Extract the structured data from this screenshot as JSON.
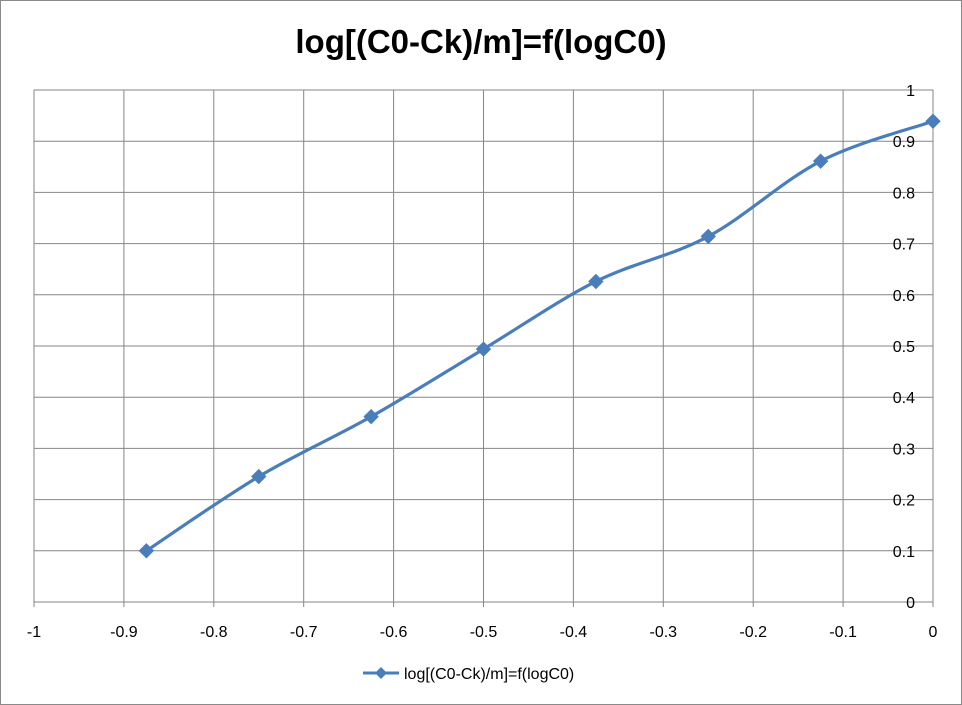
{
  "chart_data": {
    "type": "scatter",
    "title": "log[(C0-Ck)/m]=f(logC0)",
    "xlabel": "",
    "ylabel": "",
    "xlim": [
      -1,
      0
    ],
    "ylim": [
      0,
      1
    ],
    "xticks": [
      -1,
      -0.9,
      -0.8,
      -0.7,
      -0.6,
      -0.5,
      -0.4,
      -0.3,
      -0.2,
      -0.1,
      0
    ],
    "yticks": [
      0,
      0.1,
      0.2,
      0.3,
      0.4,
      0.5,
      0.6,
      0.7,
      0.8,
      0.9,
      1
    ],
    "grid": true,
    "legend_position": "bottom",
    "series": [
      {
        "name": "log[(C0-Ck)/m]=f(logC0)",
        "color": "#4a7ebb",
        "marker": "diamond",
        "smooth": true,
        "x": [
          -0.875,
          -0.75,
          -0.625,
          -0.5,
          -0.375,
          -0.25,
          -0.125,
          0
        ],
        "y": [
          0.1,
          0.245,
          0.362,
          0.494,
          0.626,
          0.714,
          0.861,
          0.939
        ]
      }
    ]
  }
}
